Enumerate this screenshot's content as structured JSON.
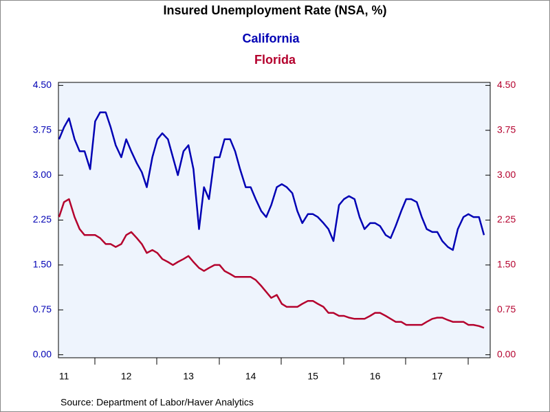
{
  "chart_data": {
    "type": "line",
    "title": "Insured Unemployment Rate (NSA, %)",
    "source": "Source:  Department of Labor/Haver Analytics",
    "x": [
      2011.42,
      2011.5,
      2011.58,
      2011.67,
      2011.75,
      2011.83,
      2011.92,
      2012.0,
      2012.08,
      2012.17,
      2012.25,
      2012.33,
      2012.42,
      2012.5,
      2012.58,
      2012.67,
      2012.75,
      2012.83,
      2012.92,
      2013.0,
      2013.08,
      2013.17,
      2013.25,
      2013.33,
      2013.42,
      2013.5,
      2013.58,
      2013.67,
      2013.75,
      2013.83,
      2013.92,
      2014.0,
      2014.08,
      2014.17,
      2014.25,
      2014.33,
      2014.42,
      2014.5,
      2014.58,
      2014.67,
      2014.75,
      2014.83,
      2014.92,
      2015.0,
      2015.08,
      2015.17,
      2015.25,
      2015.33,
      2015.42,
      2015.5,
      2015.58,
      2015.67,
      2015.75,
      2015.83,
      2015.92,
      2016.0,
      2016.08,
      2016.17,
      2016.25,
      2016.33,
      2016.42,
      2016.5,
      2016.58,
      2016.67,
      2016.75,
      2016.83,
      2016.92,
      2017.0,
      2017.08,
      2017.17,
      2017.25,
      2017.33,
      2017.42,
      2017.5,
      2017.58,
      2017.67,
      2017.75,
      2017.83,
      2017.92,
      2018.0,
      2018.08,
      2018.17,
      2018.25
    ],
    "series": [
      {
        "name": "California",
        "color": "#0000b4",
        "values": [
          3.6,
          3.8,
          3.95,
          3.6,
          3.4,
          3.4,
          3.1,
          3.9,
          4.05,
          4.05,
          3.8,
          3.5,
          3.3,
          3.6,
          3.4,
          3.2,
          3.05,
          2.8,
          3.3,
          3.6,
          3.7,
          3.6,
          3.3,
          3.0,
          3.4,
          3.5,
          3.1,
          2.1,
          2.8,
          2.6,
          3.3,
          3.3,
          3.6,
          3.6,
          3.4,
          3.1,
          2.8,
          2.8,
          2.6,
          2.4,
          2.3,
          2.5,
          2.8,
          2.85,
          2.8,
          2.7,
          2.4,
          2.2,
          2.35,
          2.35,
          2.3,
          2.2,
          2.1,
          1.9,
          2.5,
          2.6,
          2.65,
          2.6,
          2.3,
          2.1,
          2.2,
          2.2,
          2.15,
          2.0,
          1.95,
          2.15,
          2.4,
          2.6,
          2.6,
          2.55,
          2.3,
          2.1,
          2.05,
          2.05,
          1.9,
          1.8,
          1.75,
          2.1,
          2.3,
          2.35,
          2.3,
          2.3,
          2.0
        ]
      },
      {
        "name": "Florida",
        "color": "#b4002d",
        "axis": "y2",
        "values": [
          2.3,
          2.55,
          2.6,
          2.3,
          2.1,
          2.0,
          2.0,
          2.0,
          1.95,
          1.85,
          1.85,
          1.8,
          1.85,
          2.0,
          2.05,
          1.95,
          1.85,
          1.7,
          1.75,
          1.7,
          1.6,
          1.55,
          1.5,
          1.55,
          1.6,
          1.65,
          1.55,
          1.45,
          1.4,
          1.45,
          1.5,
          1.5,
          1.4,
          1.35,
          1.3,
          1.3,
          1.3,
          1.3,
          1.25,
          1.15,
          1.05,
          0.95,
          1.0,
          0.85,
          0.8,
          0.8,
          0.8,
          0.85,
          0.9,
          0.9,
          0.85,
          0.8,
          0.7,
          0.7,
          0.65,
          0.65,
          0.62,
          0.6,
          0.6,
          0.6,
          0.65,
          0.7,
          0.7,
          0.65,
          0.6,
          0.55,
          0.55,
          0.5,
          0.5,
          0.5,
          0.5,
          0.55,
          0.6,
          0.62,
          0.62,
          0.58,
          0.55,
          0.55,
          0.55,
          0.5,
          0.5,
          0.48,
          0.45
        ]
      }
    ],
    "xlim": [
      2011.41,
      2018.35
    ],
    "xticks": [
      {
        "value": 2011.5,
        "label": "11"
      },
      {
        "value": 2012.5,
        "label": "12"
      },
      {
        "value": 2013.5,
        "label": "13"
      },
      {
        "value": 2014.5,
        "label": "14"
      },
      {
        "value": 2015.5,
        "label": "15"
      },
      {
        "value": 2016.5,
        "label": "16"
      },
      {
        "value": 2017.5,
        "label": "17"
      }
    ],
    "ylim": [
      -0.05,
      4.55
    ],
    "yticks": [
      {
        "value": 0,
        "label": "0.00"
      },
      {
        "value": 0.75,
        "label": "0.75"
      },
      {
        "value": 1.5,
        "label": "1.50"
      },
      {
        "value": 2.25,
        "label": "2.25"
      },
      {
        "value": 3,
        "label": "3.00"
      },
      {
        "value": 3.75,
        "label": "3.75"
      },
      {
        "value": 4.5,
        "label": "4.50"
      }
    ],
    "y2lim": [
      -0.05,
      4.55
    ],
    "y2ticks": [
      {
        "value": 0,
        "label": "0.00"
      },
      {
        "value": 0.75,
        "label": "0.75"
      },
      {
        "value": 1.5,
        "label": "1.50"
      },
      {
        "value": 2.25,
        "label": "2.25"
      },
      {
        "value": 3,
        "label": "3.00"
      },
      {
        "value": 3.75,
        "label": "3.75"
      },
      {
        "value": 4.5,
        "label": "4.50"
      }
    ]
  }
}
